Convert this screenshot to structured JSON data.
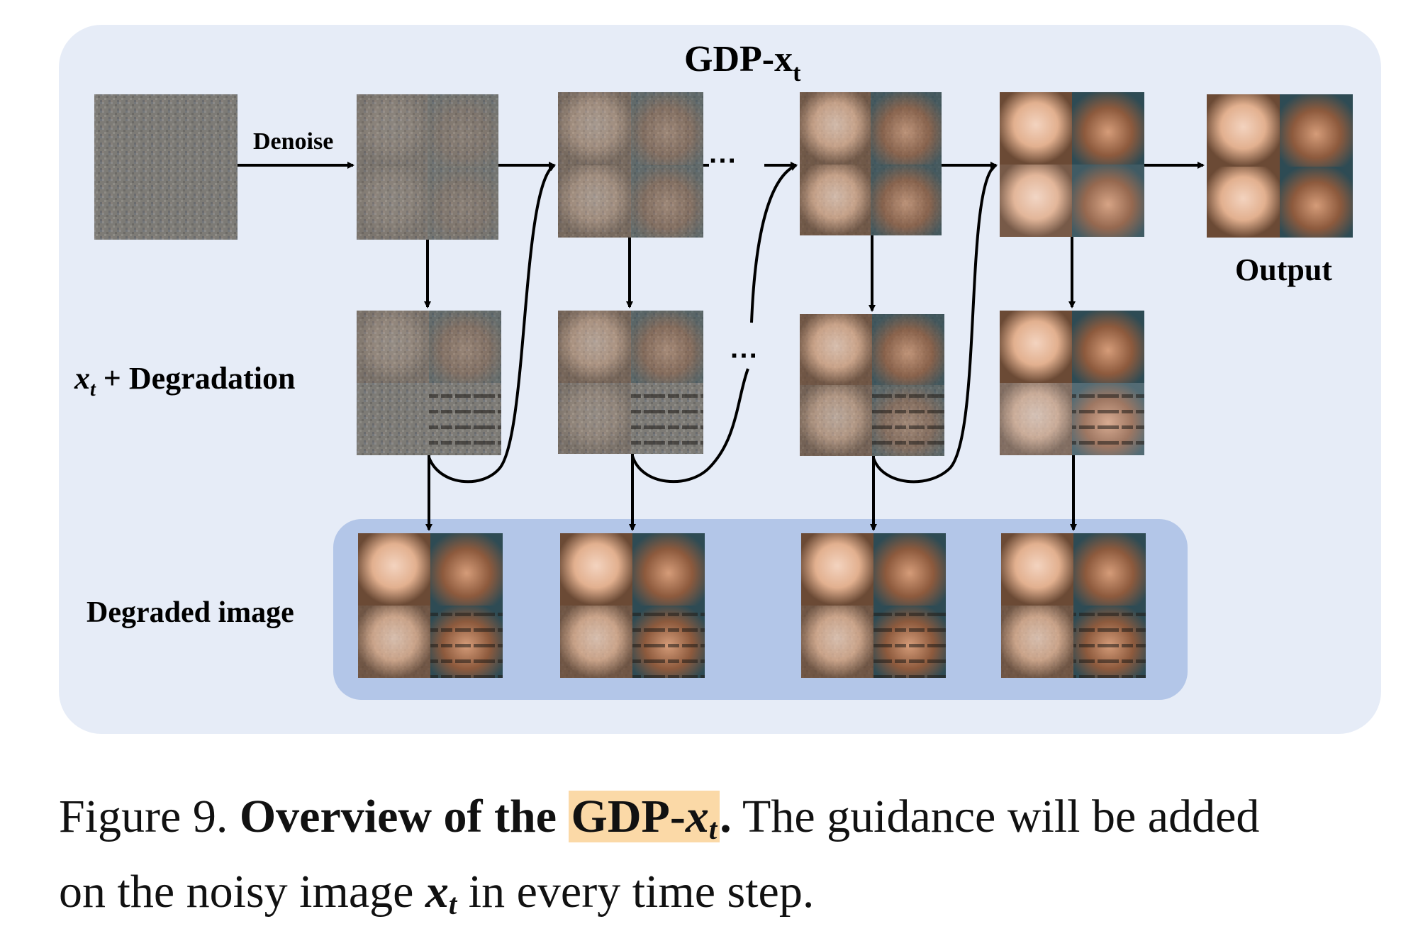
{
  "title": {
    "main": "GDP-x",
    "sub": "t"
  },
  "labels": {
    "denoise": "Denoise",
    "output": "Output",
    "degradation": {
      "var": "x",
      "sub": "t",
      "rest": " + Degradation"
    },
    "degraded": "Degraded image",
    "ellipsis_top": "···",
    "ellipsis_mid": "···"
  },
  "caption": {
    "figure": "Figure 9.",
    "bold_lead": "Overview of the",
    "highlight_main": "GDP-",
    "highlight_var": "x",
    "highlight_sub": "t",
    "period": ".",
    "rest1": "The guidance will be added",
    "line2_a": "on the noisy image",
    "line2_var": "x",
    "line2_sub": "t",
    "line2_b": "in every time step."
  },
  "colors": {
    "panel_bg": "#e6ecf7",
    "degraded_bg": "#b3c6e8",
    "arrow": "#000000",
    "highlight": "#fbd9a7"
  }
}
